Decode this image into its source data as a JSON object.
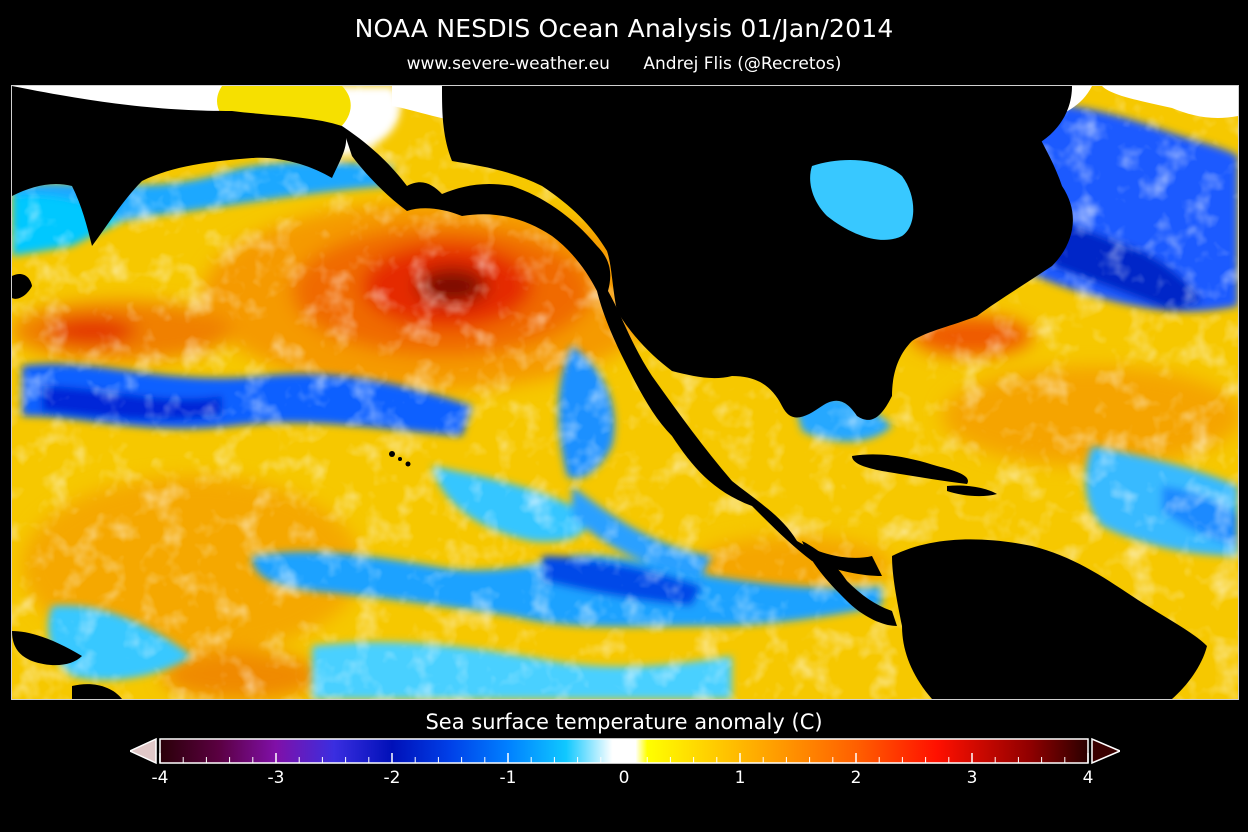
{
  "header": {
    "title": "NOAA NESDIS Ocean Analysis  01/Jan/2014",
    "website": "www.severe-weather.eu",
    "author": "Andrej Flis (@Recretos)"
  },
  "colorbar": {
    "label": "Sea surface temperature anomaly (C)",
    "min": -4,
    "max": 4,
    "ticks": [
      "-4",
      "-3",
      "-2",
      "-1",
      "0",
      "1",
      "2",
      "3",
      "4"
    ],
    "extend": "both",
    "stops": [
      {
        "v": -4.0,
        "c": "#2a0008"
      },
      {
        "v": -3.5,
        "c": "#5a0040"
      },
      {
        "v": -3.0,
        "c": "#8010a8"
      },
      {
        "v": -2.5,
        "c": "#3a2ee0"
      },
      {
        "v": -2.0,
        "c": "#0010b8"
      },
      {
        "v": -1.5,
        "c": "#0040e8"
      },
      {
        "v": -1.0,
        "c": "#0080ff"
      },
      {
        "v": -0.5,
        "c": "#10c8ff"
      },
      {
        "v": -0.1,
        "c": "#ffffff"
      },
      {
        "v": 0.1,
        "c": "#ffffff"
      },
      {
        "v": 0.2,
        "c": "#ffff00"
      },
      {
        "v": 1.0,
        "c": "#ffb800"
      },
      {
        "v": 2.0,
        "c": "#ff6000"
      },
      {
        "v": 2.7,
        "c": "#ff1000"
      },
      {
        "v": 3.5,
        "c": "#900000"
      },
      {
        "v": 4.0,
        "c": "#2a0000"
      }
    ]
  },
  "map": {
    "land_color": "#000000",
    "sea_ice_color": "#ffffff",
    "base_color": "#f5c400"
  }
}
